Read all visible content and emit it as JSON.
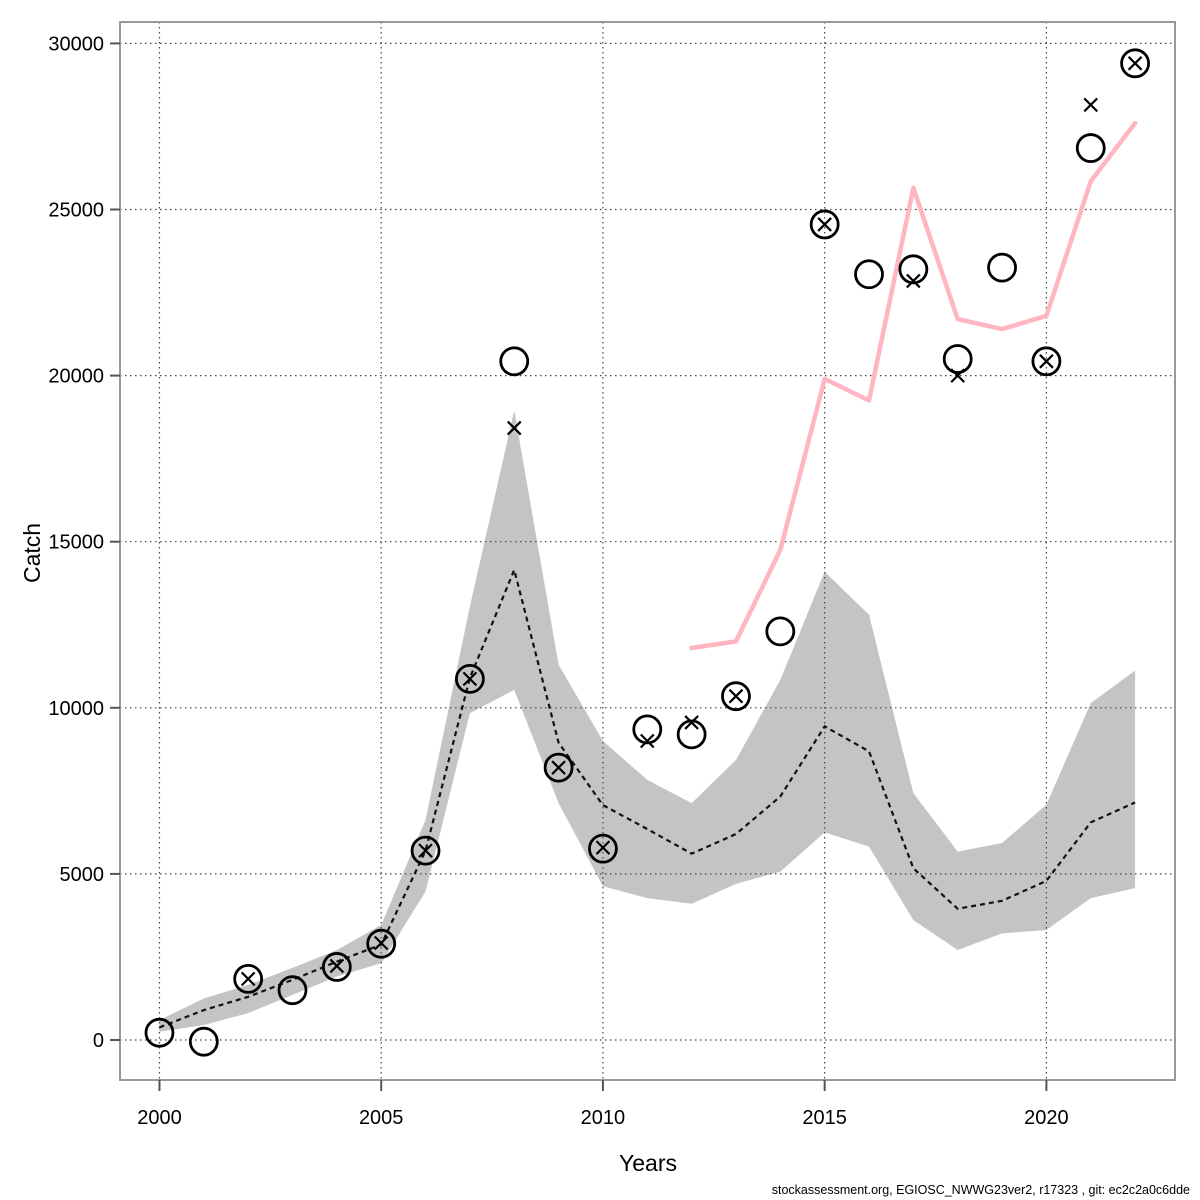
{
  "figure": {
    "ylabel": "Catch",
    "xlabel": "Years",
    "footer": "stockassessment.org, EGIOSC_NWWG23ver2, r17323 , git: ec2c2a0c6dde"
  },
  "chart_data": {
    "type": "line",
    "title": "",
    "xlabel": "Years",
    "ylabel": "Catch",
    "xlim": [
      1999.11,
      2022.9
    ],
    "ylim": [
      -1204,
      30644
    ],
    "x_ticks": [
      2000,
      2005,
      2010,
      2015,
      2020
    ],
    "y_ticks": [
      0,
      5000,
      10000,
      15000,
      20000,
      25000,
      30000
    ],
    "grid": "dotted-at-ticks",
    "legend": "none",
    "years": [
      2000,
      2001,
      2002,
      2003,
      2004,
      2005,
      2006,
      2007,
      2008,
      2009,
      2010,
      2011,
      2012,
      2013,
      2014,
      2015,
      2016,
      2017,
      2018,
      2019,
      2020,
      2021,
      2022
    ],
    "series": [
      {
        "name": "confidence-band",
        "type": "band",
        "color": "#c4c4c4",
        "upper": [
          600,
          1250,
          1660,
          2170,
          2710,
          3460,
          6630,
          13050,
          18950,
          11300,
          9000,
          7830,
          7130,
          8430,
          10840,
          14100,
          12800,
          7430,
          5670,
          5930,
          7080,
          10140,
          11120
        ],
        "lower": [
          250,
          450,
          810,
          1360,
          1910,
          2310,
          4470,
          9840,
          10540,
          7130,
          4630,
          4270,
          4100,
          4700,
          5070,
          6250,
          5820,
          3610,
          2710,
          3210,
          3310,
          4270,
          4570
        ]
      },
      {
        "name": "estimated-catch",
        "type": "dashed-line",
        "color": "#111111",
        "values": [
          380,
          900,
          1300,
          1810,
          2360,
          2870,
          5700,
          10900,
          14150,
          8950,
          7070,
          6350,
          5610,
          6200,
          7330,
          9440,
          8690,
          5170,
          3950,
          4190,
          4790,
          6550,
          7150
        ]
      },
      {
        "name": "forecast-line",
        "type": "line",
        "color": "#ffb6c1",
        "x": [
          2012,
          2013,
          2014,
          2015,
          2016,
          2017,
          2018,
          2019,
          2020,
          2021,
          2022
        ],
        "values": [
          11800,
          12000,
          14750,
          19900,
          19250,
          25650,
          21700,
          21400,
          21800,
          25850,
          27600
        ]
      },
      {
        "name": "observed-catch",
        "type": "circle-points",
        "color": "#000000",
        "values": [
          220,
          -50,
          1840,
          1500,
          2200,
          2900,
          5700,
          10870,
          20430,
          8200,
          5760,
          9350,
          9200,
          10350,
          12300,
          24550,
          23050,
          23200,
          20500,
          23250,
          20430,
          26850,
          29400
        ]
      },
      {
        "name": "catch-x-marks",
        "type": "x-points",
        "color": "#000000",
        "values": [
          null,
          null,
          1840,
          null,
          2230,
          2920,
          5700,
          10870,
          18420,
          8200,
          5790,
          9000,
          9560,
          10350,
          null,
          24550,
          null,
          22850,
          20000,
          null,
          20430,
          28150,
          29400
        ]
      }
    ]
  }
}
